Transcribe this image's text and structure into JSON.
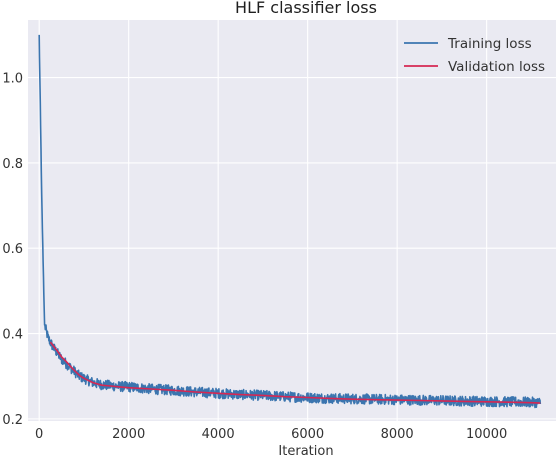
{
  "chart_data": {
    "type": "line",
    "title": "HLF classifier loss",
    "xlabel": "Iteration",
    "ylabel": "",
    "xlim": [
      -250,
      11550
    ],
    "ylim": [
      0.195,
      1.135
    ],
    "xticks": [
      0,
      2000,
      4000,
      6000,
      8000,
      10000
    ],
    "xtick_labels": [
      "0",
      "2000",
      "4000",
      "6000",
      "8000",
      "10000"
    ],
    "yticks": [
      0.2,
      0.4,
      0.6,
      0.8,
      1.0
    ],
    "ytick_labels": [
      "0.2",
      "0.4",
      "0.6",
      "0.8",
      "1.0"
    ],
    "grid": true,
    "legend_position": "top-right",
    "background": "#eaeaf2",
    "series": [
      {
        "name": "Training loss",
        "color": "#3b75af",
        "x": [
          0,
          60,
          120,
          200,
          300,
          400,
          500,
          600,
          700,
          800,
          900,
          1000,
          1200,
          1400,
          1600,
          1800,
          2000,
          2500,
          3000,
          3500,
          4000,
          4500,
          5000,
          5500,
          6000,
          6500,
          7000,
          7500,
          8000,
          8500,
          9000,
          9500,
          10000,
          10500,
          11000,
          11200
        ],
        "y": [
          1.1,
          0.7,
          0.42,
          0.39,
          0.37,
          0.355,
          0.34,
          0.33,
          0.32,
          0.31,
          0.3,
          0.295,
          0.285,
          0.28,
          0.278,
          0.276,
          0.275,
          0.27,
          0.267,
          0.263,
          0.26,
          0.257,
          0.255,
          0.252,
          0.25,
          0.248,
          0.247,
          0.246,
          0.245,
          0.244,
          0.243,
          0.242,
          0.241,
          0.24,
          0.239,
          0.238
        ],
        "noise_band": 0.012
      },
      {
        "name": "Validation loss",
        "color": "#d62753",
        "x": [
          250,
          400,
          500,
          600,
          700,
          800,
          900,
          1000,
          1200,
          1400,
          1600,
          1800,
          2000,
          2500,
          3000,
          3500,
          4000,
          4500,
          5000,
          5500,
          6000,
          6500,
          7000,
          7500,
          8000,
          8500,
          9000,
          9500,
          10000,
          10500,
          11000,
          11200
        ],
        "y": [
          0.38,
          0.36,
          0.345,
          0.335,
          0.323,
          0.312,
          0.302,
          0.295,
          0.285,
          0.279,
          0.277,
          0.275,
          0.273,
          0.27,
          0.267,
          0.263,
          0.26,
          0.257,
          0.255,
          0.252,
          0.25,
          0.248,
          0.246,
          0.245,
          0.244,
          0.243,
          0.242,
          0.241,
          0.24,
          0.239,
          0.238,
          0.237
        ]
      }
    ]
  }
}
